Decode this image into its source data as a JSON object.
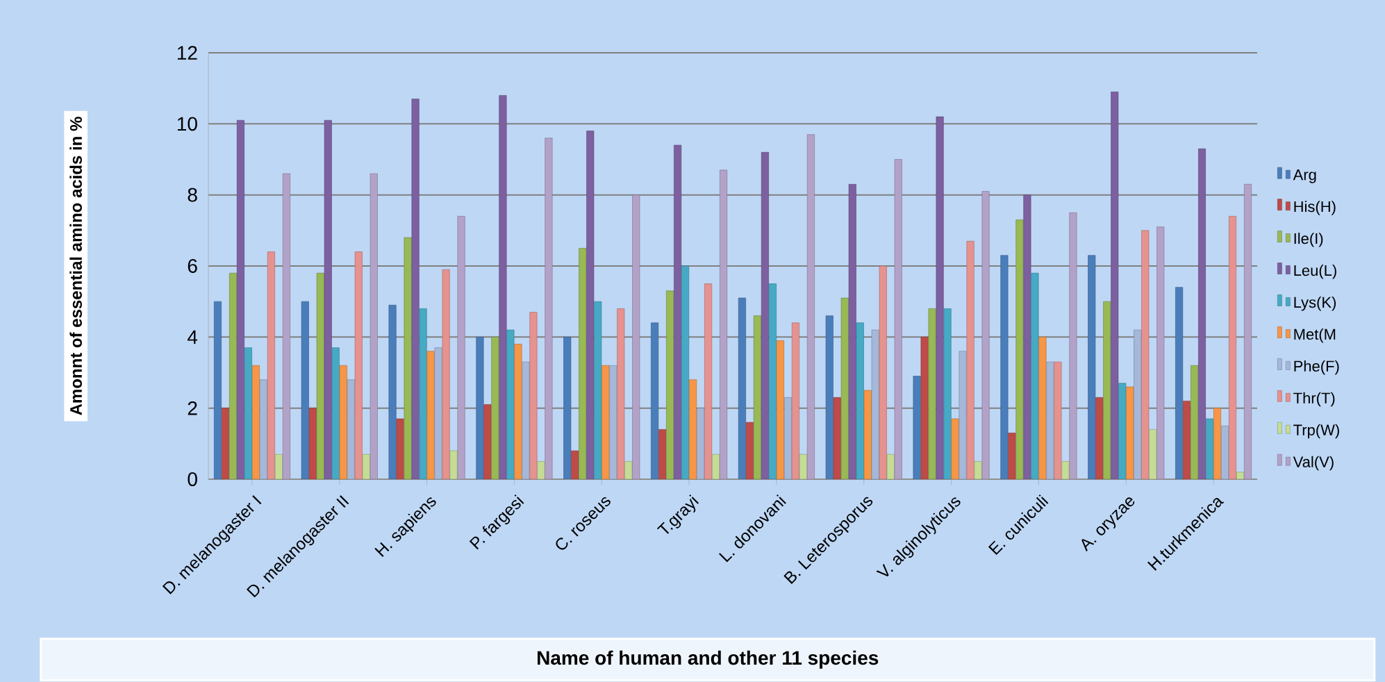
{
  "chart_data": {
    "type": "bar",
    "xlabel": "Name of human and other 11 species",
    "ylabel": "Amonnt of essential amino acids in %",
    "categories": [
      "D. melanogaster I",
      "D. melanogaster II",
      "H. sapiens",
      "P. fargesi",
      "C. roseus",
      "T.grayi",
      "L. donovani",
      "B. Leterosporus",
      "V. alginolyticus",
      "E. cuniculi",
      "A. oryzae",
      "H.turkmenica"
    ],
    "series": [
      {
        "name": "Arg",
        "color": "#4a7ebb",
        "values": [
          5.0,
          5.0,
          4.9,
          4.0,
          4.0,
          4.4,
          5.1,
          4.6,
          2.9,
          6.3,
          6.3,
          5.4
        ]
      },
      {
        "name": "His(H)",
        "color": "#be4b48",
        "values": [
          2.0,
          2.0,
          1.7,
          2.1,
          0.8,
          1.4,
          1.6,
          2.3,
          4.0,
          1.3,
          2.3,
          2.2
        ]
      },
      {
        "name": "Ile(I)",
        "color": "#98b954",
        "values": [
          5.8,
          5.8,
          6.8,
          4.0,
          6.5,
          5.3,
          4.6,
          5.1,
          4.8,
          7.3,
          5.0,
          3.2
        ]
      },
      {
        "name": "Leu(L)",
        "color": "#7d60a0",
        "values": [
          10.1,
          10.1,
          10.7,
          10.8,
          9.8,
          9.4,
          9.2,
          8.3,
          10.2,
          8.0,
          10.9,
          9.3
        ]
      },
      {
        "name": "Lys(K)",
        "color": "#46aac5",
        "values": [
          3.7,
          3.7,
          4.8,
          4.2,
          5.0,
          6.0,
          5.5,
          4.4,
          4.8,
          5.8,
          2.7,
          1.7
        ]
      },
      {
        "name": "Met(M",
        "color": "#f79646",
        "values": [
          3.2,
          3.2,
          3.6,
          3.8,
          3.2,
          2.8,
          3.9,
          2.5,
          1.7,
          4.0,
          2.6,
          2.0
        ]
      },
      {
        "name": "Phe(F)",
        "color": "#a5b8d9",
        "values": [
          2.8,
          2.8,
          3.7,
          3.3,
          3.2,
          2.0,
          2.3,
          4.2,
          3.6,
          3.3,
          4.2,
          1.5
        ]
      },
      {
        "name": "Thr(T)",
        "color": "#e6928f",
        "values": [
          6.4,
          6.4,
          5.9,
          4.7,
          4.8,
          5.5,
          4.4,
          6.0,
          6.7,
          3.3,
          7.0,
          7.4
        ]
      },
      {
        "name": "Trp(W)",
        "color": "#c5dc96",
        "values": [
          0.7,
          0.7,
          0.8,
          0.5,
          0.5,
          0.7,
          0.7,
          0.7,
          0.5,
          0.5,
          1.4,
          0.2
        ]
      },
      {
        "name": "Val(V)",
        "color": "#b3a2c7",
        "values": [
          8.6,
          8.6,
          7.4,
          9.6,
          8.0,
          8.7,
          9.7,
          9.0,
          8.1,
          7.5,
          7.1,
          8.3
        ]
      }
    ],
    "ylim": [
      0,
      12
    ],
    "yticks": [
      0,
      2,
      4,
      6,
      8,
      10,
      12
    ],
    "grid": "y",
    "legend": "right"
  }
}
